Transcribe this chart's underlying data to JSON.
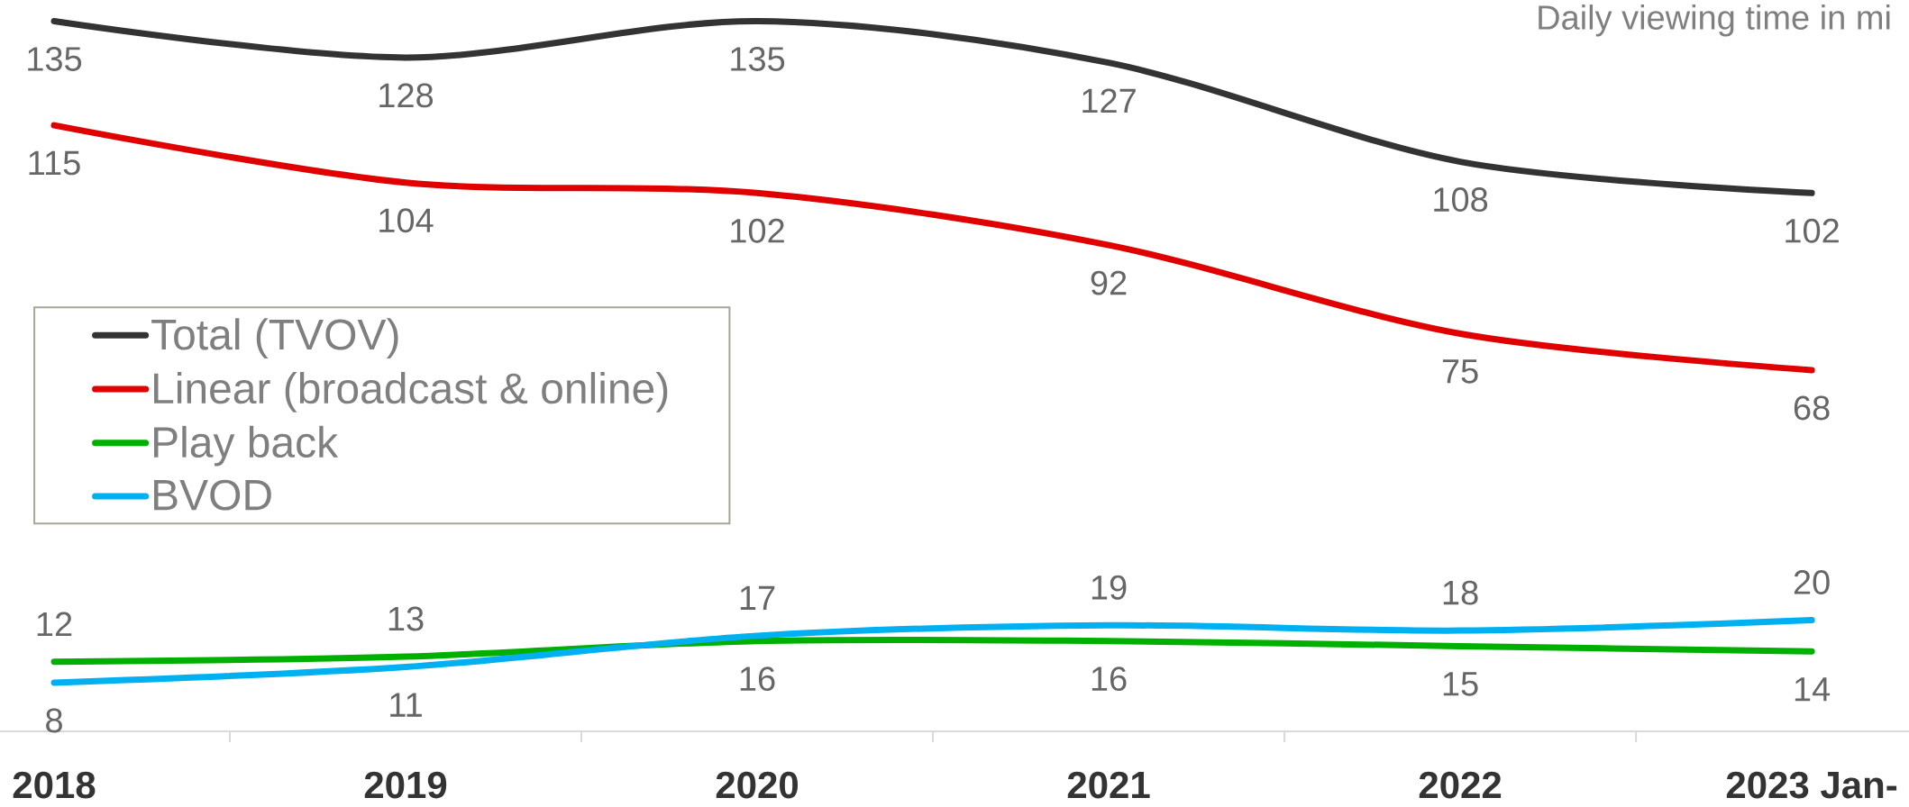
{
  "chart_data": {
    "type": "line",
    "title": "Daily viewing time in mi",
    "categories": [
      "2018",
      "2019",
      "2020",
      "2021",
      "2022",
      "2023 Jan-"
    ],
    "series": [
      {
        "name": "Total (TVOV)",
        "color": "#333333",
        "values": [
          135,
          128,
          135,
          127,
          108,
          102
        ]
      },
      {
        "name": "Linear (broadcast & online)",
        "color": "#e00000",
        "values": [
          115,
          104,
          102,
          92,
          75,
          68
        ]
      },
      {
        "name": "Play back",
        "color": "#00b000",
        "values": [
          12,
          13,
          16,
          16,
          15,
          14
        ]
      },
      {
        "name": "BVOD",
        "color": "#00b0f0",
        "values": [
          8,
          11,
          17,
          19,
          18,
          20
        ]
      }
    ],
    "data_labels": true,
    "legend": "left",
    "marker": "none",
    "line_style": "solid"
  }
}
